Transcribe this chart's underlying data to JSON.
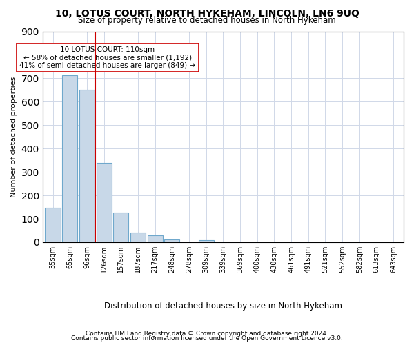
{
  "title": "10, LOTUS COURT, NORTH HYKEHAM, LINCOLN, LN6 9UQ",
  "subtitle": "Size of property relative to detached houses in North Hykeham",
  "xlabel": "Distribution of detached houses by size in North Hykeham",
  "ylabel": "Number of detached properties",
  "categories": [
    "35sqm",
    "65sqm",
    "96sqm",
    "126sqm",
    "157sqm",
    "187sqm",
    "217sqm",
    "248sqm",
    "278sqm",
    "309sqm",
    "339sqm",
    "369sqm",
    "400sqm",
    "430sqm",
    "461sqm",
    "491sqm",
    "521sqm",
    "552sqm",
    "582sqm",
    "613sqm",
    "643sqm"
  ],
  "values": [
    148,
    712,
    650,
    340,
    127,
    40,
    30,
    12,
    0,
    8,
    0,
    0,
    0,
    0,
    0,
    0,
    0,
    0,
    0,
    0,
    0
  ],
  "bar_color": "#c8d8e8",
  "bar_edge_color": "#6fa8cc",
  "vline_x": 2.5,
  "vline_color": "#cc0000",
  "annotation_text": "10 LOTUS COURT: 110sqm\n← 58% of detached houses are smaller (1,192)\n41% of semi-detached houses are larger (849) →",
  "annotation_box_color": "#ffffff",
  "annotation_box_edge": "#cc0000",
  "footer1": "Contains HM Land Registry data © Crown copyright and database right 2024.",
  "footer2": "Contains public sector information licensed under the Open Government Licence v3.0.",
  "ylim": [
    0,
    900
  ],
  "background_color": "#ffffff",
  "grid_color": "#d0d8e8"
}
